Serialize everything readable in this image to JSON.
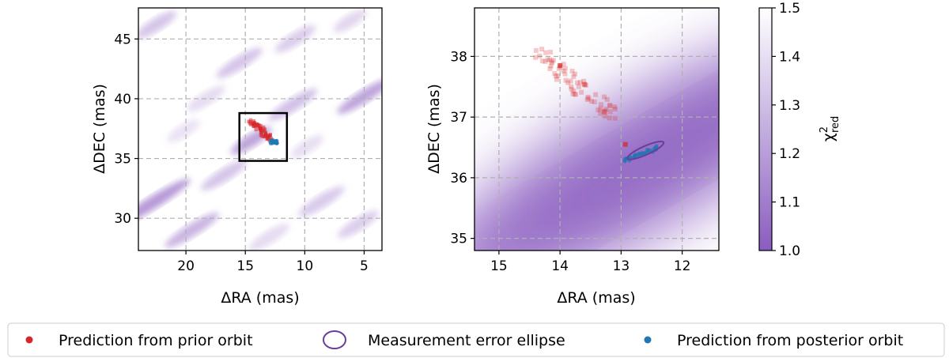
{
  "chart_data": [
    {
      "type": "scatter",
      "panel": "left",
      "xlabel": "ΔRA (mas)",
      "ylabel": "ΔDEC (mas)",
      "xlim": [
        24,
        3.5
      ],
      "ylim": [
        27.3,
        47.6
      ],
      "xticks": [
        20,
        15,
        10,
        5
      ],
      "yticks": [
        30,
        35,
        40,
        45
      ],
      "grid": true,
      "background": "chi2_red map (diagonal striped minima)",
      "zoom_box": {
        "x": [
          15.5,
          11.5
        ],
        "y": [
          34.8,
          38.8
        ]
      },
      "series": [
        {
          "name": "Prediction from prior orbit",
          "color": "#d62728",
          "x_range": [
            14.5,
            12.8
          ],
          "y_range": [
            36.5,
            38.2
          ]
        },
        {
          "name": "Prediction from posterior orbit",
          "color": "#1f77b4",
          "x": 12.6,
          "y": 36.4
        }
      ]
    },
    {
      "type": "scatter",
      "panel": "right",
      "xlabel": "ΔRA (mas)",
      "ylabel": "ΔDEC (mas)",
      "xlim": [
        15.4,
        11.4
      ],
      "ylim": [
        34.8,
        38.8
      ],
      "xticks": [
        15,
        14,
        13,
        12
      ],
      "yticks": [
        35,
        36,
        37,
        38
      ],
      "grid": true,
      "background": "chi2_red map (diagonal valley)",
      "series": [
        {
          "name": "Prediction from prior orbit",
          "color": "#d62728",
          "x_range": [
            14.4,
            12.9
          ],
          "y_range": [
            36.55,
            38.15
          ]
        },
        {
          "name": "Measurement error ellipse",
          "color": "#6a3d9a",
          "center": [
            12.55,
            36.43
          ]
        },
        {
          "name": "Prediction from posterior orbit",
          "color": "#1f77b4",
          "x": 12.75,
          "y": 36.35
        }
      ]
    },
    {
      "type": "colorbar",
      "label": "χ²_red",
      "range": [
        1.0,
        1.5
      ],
      "ticks": [
        1.0,
        1.1,
        1.2,
        1.3,
        1.4,
        1.5
      ],
      "color_low": "#8a5cc0",
      "color_high": "#ffffff"
    }
  ],
  "legend": [
    {
      "label": "Prediction from prior orbit",
      "icon": "red-dot-icon"
    },
    {
      "label": "Measurement error ellipse",
      "icon": "purple-ellipse-icon"
    },
    {
      "label": "Prediction from posterior orbit",
      "icon": "blue-dot-icon"
    }
  ]
}
